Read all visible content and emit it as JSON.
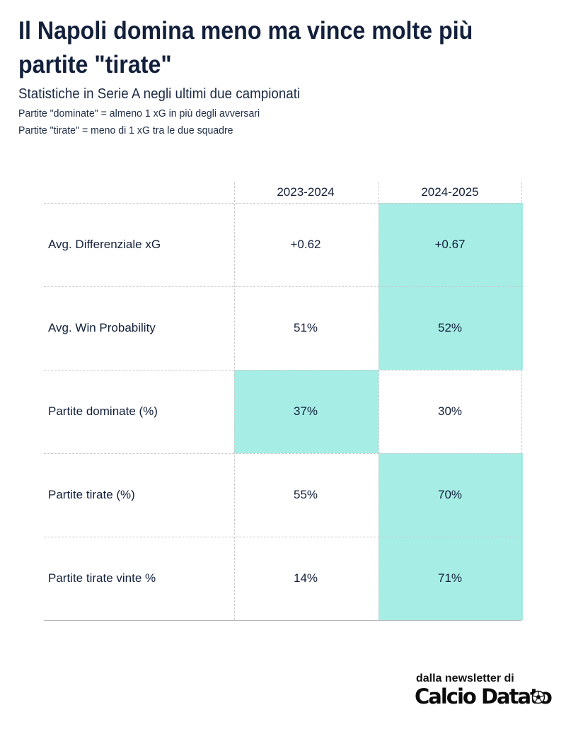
{
  "header": {
    "title_line1": "Il Napoli domina meno ma vince molte più",
    "title_line2": "partite \"tirate\"",
    "subtitle": "Statistiche in Serie A negli ultimi due campionati",
    "note1": "Partite \"dominate\" = almeno 1 xG in più degli avversari",
    "note2": "Partite \"tirate\" = meno di 1 xG tra le due squadre"
  },
  "chart_data": {
    "type": "table",
    "columns": [
      "2023-2024",
      "2024-2025"
    ],
    "rows": [
      {
        "label": "Avg. Differenziale xG",
        "values": [
          "+0.62",
          "+0.67"
        ],
        "highlight": [
          false,
          true
        ]
      },
      {
        "label": "Avg. Win Probability",
        "values": [
          "51%",
          "52%"
        ],
        "highlight": [
          false,
          true
        ]
      },
      {
        "label": "Partite dominate (%)",
        "values": [
          "37%",
          "30%"
        ],
        "highlight": [
          true,
          false
        ]
      },
      {
        "label": "Partite tirate (%)",
        "values": [
          "55%",
          "70%"
        ],
        "highlight": [
          false,
          true
        ]
      },
      {
        "label": "Partite tirate vinte %",
        "values": [
          "14%",
          "71%"
        ],
        "highlight": [
          false,
          true
        ]
      }
    ],
    "highlight_color": "#a6ede5"
  },
  "footer": {
    "source_prefix": "dalla newsletter di",
    "logo_text": "Calcio Datato"
  }
}
